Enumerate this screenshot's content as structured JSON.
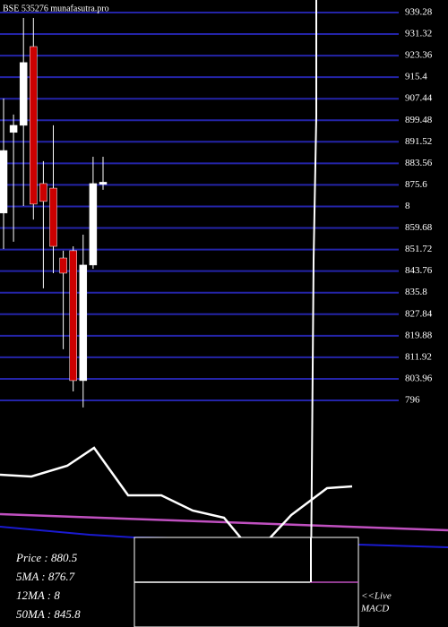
{
  "chart_data": {
    "type": "candlestick",
    "title": "BSE 535276 munafasutra.pro",
    "categories": [
      null,
      null,
      null,
      null,
      null,
      null,
      null,
      null,
      null,
      null,
      null
    ],
    "open": [
      865.2,
      895.0,
      897.6,
      926.7,
      876.1,
      874.4,
      848.6,
      851.3,
      803.3,
      846.0,
      875.8
    ],
    "high": [
      907.5,
      901.6,
      937.3,
      937.3,
      884.4,
      897.6,
      851.3,
      852.9,
      857.2,
      886.0,
      886.0
    ],
    "low": [
      851.9,
      854.6,
      867.8,
      862.8,
      837.4,
      843.0,
      814.9,
      799.3,
      793.4,
      844.6,
      873.8
    ],
    "close": [
      888.3,
      897.6,
      920.8,
      868.5,
      869.5,
      852.9,
      843.0,
      803.3,
      846.0,
      876.1,
      876.6
    ],
    "up_color": "#ffffff",
    "down_color": "#cc0000",
    "ylim": [
      791.7,
      943.9
    ],
    "yticks": [
      939.28,
      931.32,
      923.36,
      915.4,
      907.44,
      899.48,
      891.52,
      883.56,
      875.6,
      {
        "value": 867.64,
        "label": "8"
      },
      859.68,
      851.72,
      843.76,
      835.8,
      827.84,
      819.88,
      811.92,
      803.96,
      796
    ],
    "grid": true,
    "grid_color": "#2424a8"
  },
  "info": [
    "Price   : 880.5",
    "5MA : 876.7",
    "12MA : 8",
    "50MA : 845.8"
  ],
  "macd_label": [
    "<<Live",
    "MACD"
  ]
}
